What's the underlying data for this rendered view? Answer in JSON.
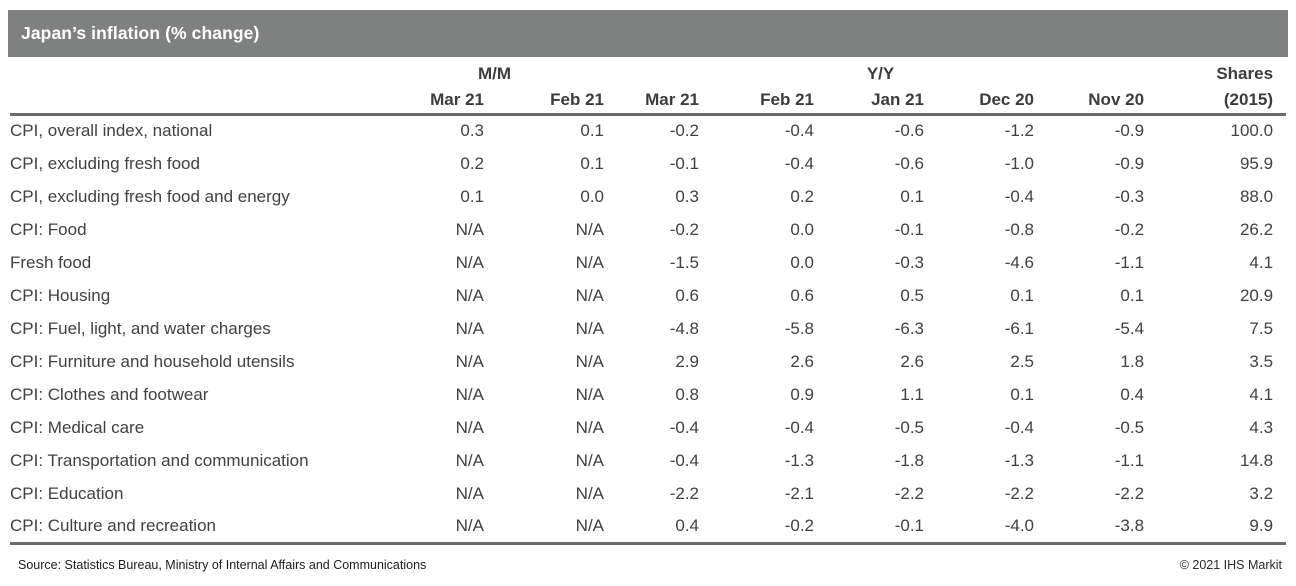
{
  "title": "Japan’s inflation (% change)",
  "chart_data": {
    "type": "table",
    "title": "Japan’s inflation (% change)",
    "column_groups": [
      {
        "label": "M/M",
        "span": 2
      },
      {
        "label": "Y/Y",
        "span": 5
      },
      {
        "label": "Shares",
        "span": 1
      }
    ],
    "period_headers": [
      "Mar 21",
      "Feb 21",
      "Mar 21",
      "Feb 21",
      "Jan 21",
      "Dec 20",
      "Nov 20"
    ],
    "shares_year_label": "(2015)",
    "columns": [
      "M/M Mar 21",
      "M/M Feb 21",
      "Y/Y Mar 21",
      "Y/Y Feb 21",
      "Y/Y Jan 21",
      "Y/Y Dec 20",
      "Y/Y Nov 20",
      "Shares (2015)"
    ],
    "rows": [
      {
        "label": "CPI, overall index, national",
        "values": [
          "0.3",
          "0.1",
          "-0.2",
          "-0.4",
          "-0.6",
          "-1.2",
          "-0.9",
          "100.0"
        ]
      },
      {
        "label": "CPI, excluding fresh food",
        "values": [
          "0.2",
          "0.1",
          "-0.1",
          "-0.4",
          "-0.6",
          "-1.0",
          "-0.9",
          "95.9"
        ]
      },
      {
        "label": "CPI, excluding fresh food and energy",
        "values": [
          "0.1",
          "0.0",
          "0.3",
          "0.2",
          "0.1",
          "-0.4",
          "-0.3",
          "88.0"
        ]
      },
      {
        "label": "CPI: Food",
        "values": [
          "N/A",
          "N/A",
          "-0.2",
          "0.0",
          "-0.1",
          "-0.8",
          "-0.2",
          "26.2"
        ]
      },
      {
        "label": "Fresh food",
        "values": [
          "N/A",
          "N/A",
          "-1.5",
          "0.0",
          "-0.3",
          "-4.6",
          "-1.1",
          "4.1"
        ]
      },
      {
        "label": "CPI: Housing",
        "values": [
          "N/A",
          "N/A",
          "0.6",
          "0.6",
          "0.5",
          "0.1",
          "0.1",
          "20.9"
        ]
      },
      {
        "label": "CPI: Fuel, light, and water charges",
        "values": [
          "N/A",
          "N/A",
          "-4.8",
          "-5.8",
          "-6.3",
          "-6.1",
          "-5.4",
          "7.5"
        ]
      },
      {
        "label": "CPI: Furniture and household utensils",
        "values": [
          "N/A",
          "N/A",
          "2.9",
          "2.6",
          "2.6",
          "2.5",
          "1.8",
          "3.5"
        ]
      },
      {
        "label": "CPI: Clothes and footwear",
        "values": [
          "N/A",
          "N/A",
          "0.8",
          "0.9",
          "1.1",
          "0.1",
          "0.4",
          "4.1"
        ]
      },
      {
        "label": "CPI: Medical care",
        "values": [
          "N/A",
          "N/A",
          "-0.4",
          "-0.4",
          "-0.5",
          "-0.4",
          "-0.5",
          "4.3"
        ]
      },
      {
        "label": "CPI: Transportation and communication",
        "values": [
          "N/A",
          "N/A",
          "-0.4",
          "-1.3",
          "-1.8",
          "-1.3",
          "-1.1",
          "14.8"
        ]
      },
      {
        "label": "CPI: Education",
        "values": [
          "N/A",
          "N/A",
          "-2.2",
          "-2.1",
          "-2.2",
          "-2.2",
          "-2.2",
          "3.2"
        ]
      },
      {
        "label": "CPI: Culture and recreation",
        "values": [
          "N/A",
          "N/A",
          "0.4",
          "-0.2",
          "-0.1",
          "-4.0",
          "-3.8",
          "9.9"
        ]
      }
    ]
  },
  "footer": {
    "source": "Source: Statistics Bureau, Ministry of Internal Affairs and Communications",
    "copyright": "© 2021 IHS Markit"
  },
  "colors": {
    "title_bar": "#7f8180",
    "rule": "#6b6d6c",
    "text": "#414141"
  }
}
